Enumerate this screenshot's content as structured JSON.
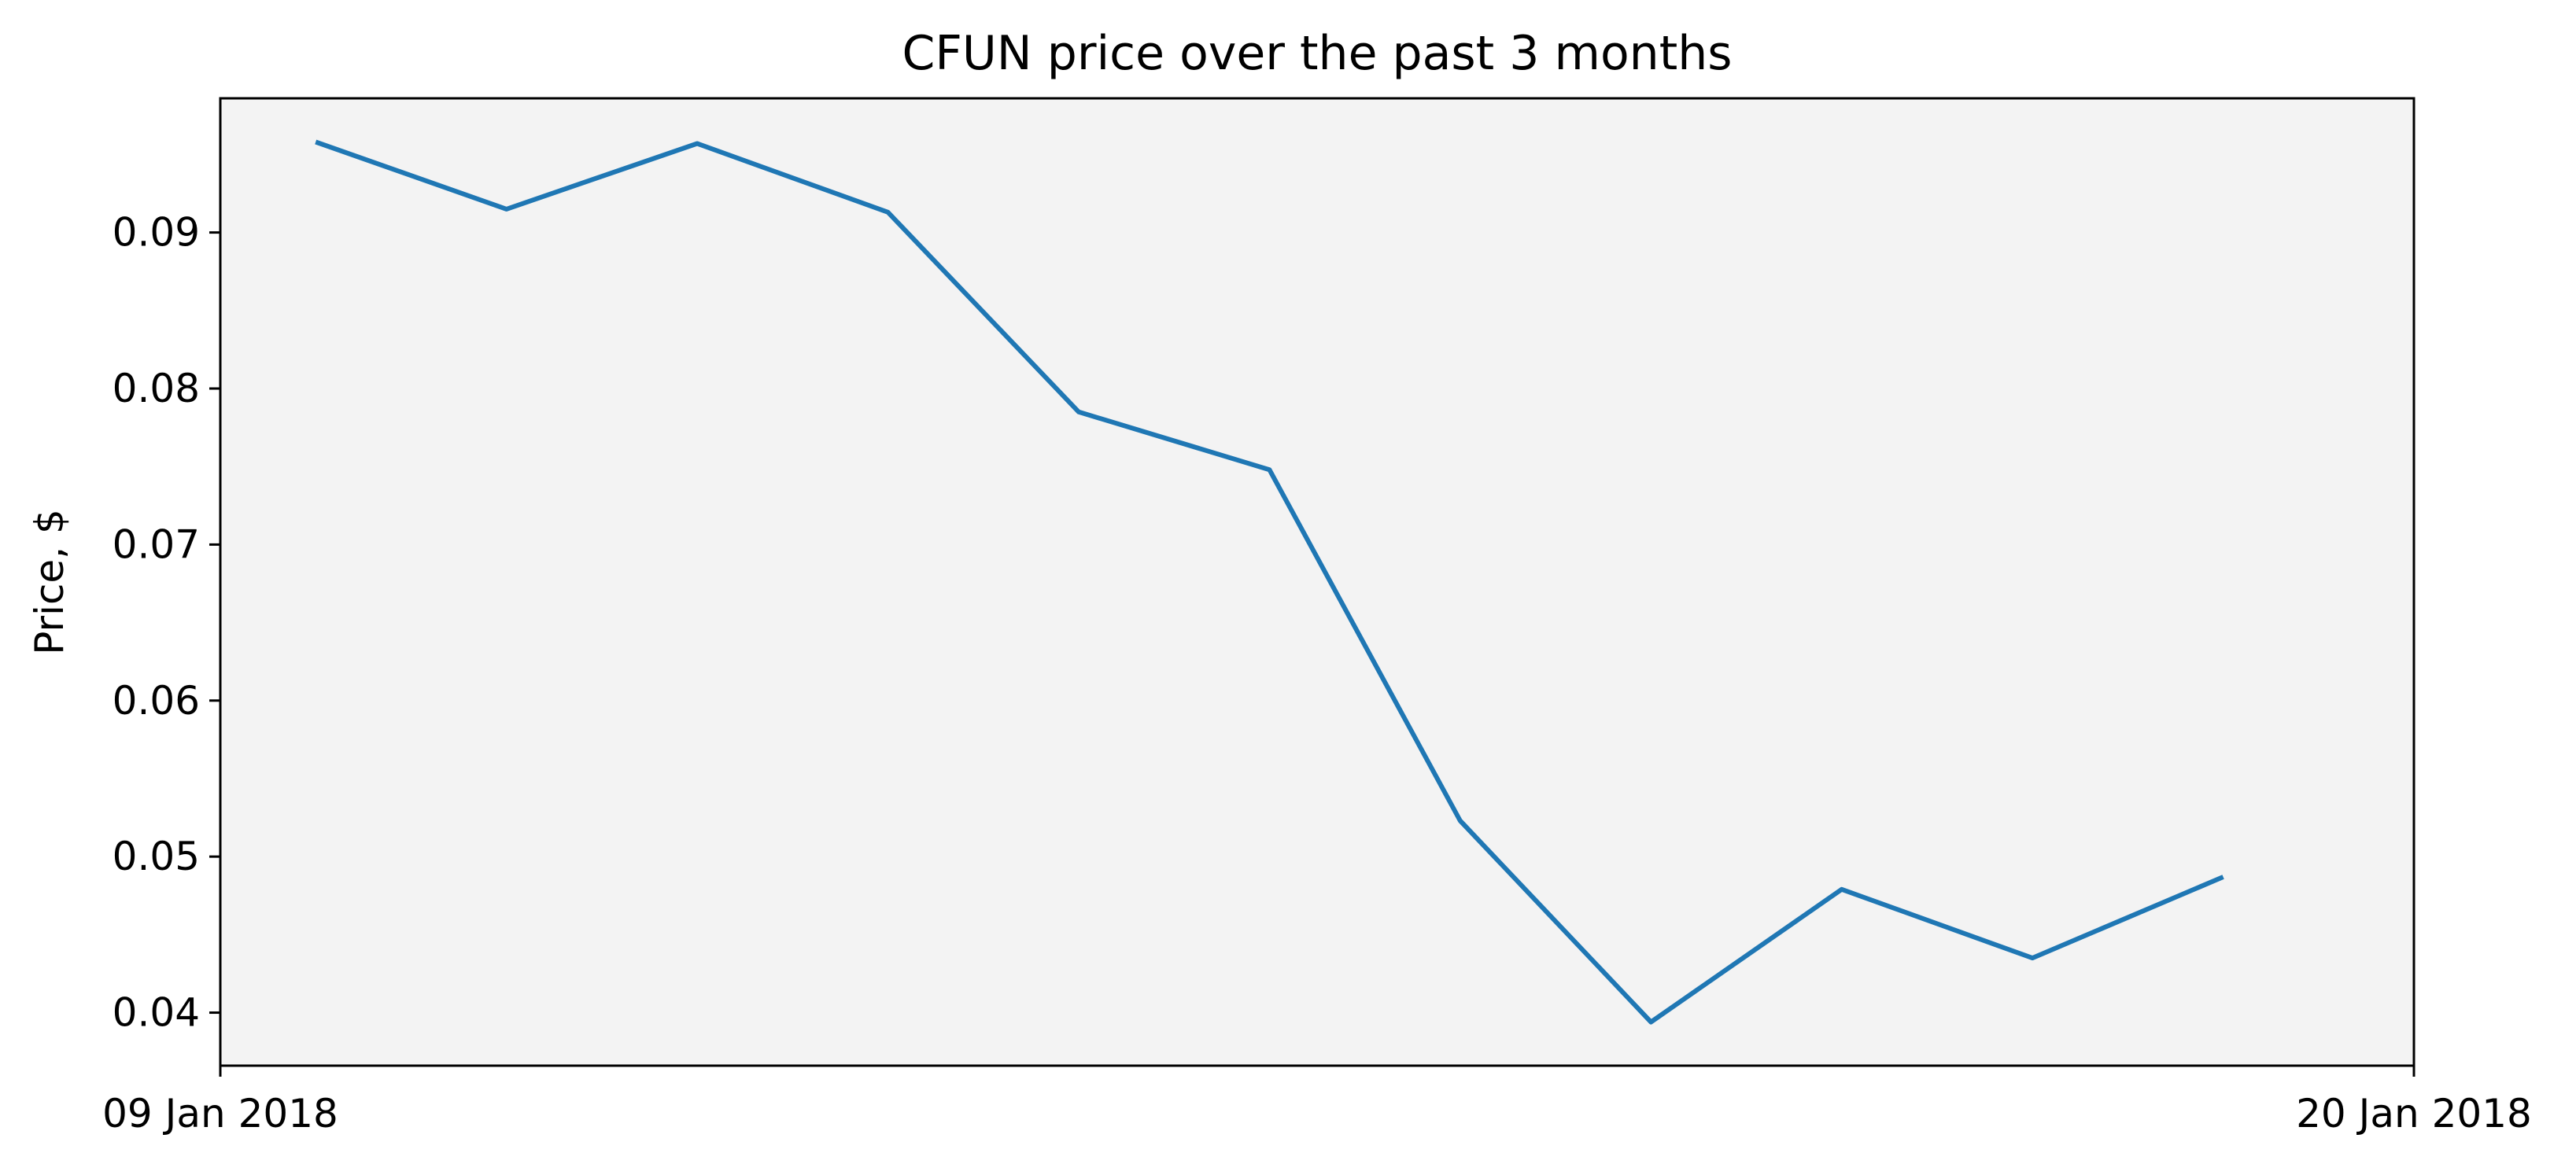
{
  "chart_data": {
    "type": "line",
    "title": "CFUN price over the past 3 months",
    "xlabel": "",
    "ylabel": "Price, $",
    "x": [
      "2018-01-09",
      "2018-01-10",
      "2018-01-11",
      "2018-01-12",
      "2018-01-13",
      "2018-01-14",
      "2018-01-15",
      "2018-01-16",
      "2018-01-17",
      "2018-01-18",
      "2018-01-19"
    ],
    "series": [
      {
        "values": [
          0.0958,
          0.0915,
          0.0957,
          0.0913,
          0.0785,
          0.0748,
          0.0523,
          0.0394,
          0.0479,
          0.0435,
          0.0487
        ],
        "color": "#1f77b4"
      }
    ],
    "xlim": [
      "2018-01-08 12:00",
      "2018-01-20"
    ],
    "ylim": [
      0.0366,
      0.0986
    ],
    "x_ticks": [
      {
        "value": "2018-01-08 12:00",
        "label": "09 Jan 2018"
      },
      {
        "value": "2018-01-20",
        "label": "20 Jan 2018"
      }
    ],
    "y_ticks": [
      {
        "value": 0.04,
        "label": "0.04"
      },
      {
        "value": 0.05,
        "label": "0.05"
      },
      {
        "value": 0.06,
        "label": "0.06"
      },
      {
        "value": 0.07,
        "label": "0.07"
      },
      {
        "value": 0.08,
        "label": "0.08"
      },
      {
        "value": 0.09,
        "label": "0.09"
      }
    ],
    "grid": false,
    "legend": "none",
    "plot_background": "#f3f3f3"
  }
}
